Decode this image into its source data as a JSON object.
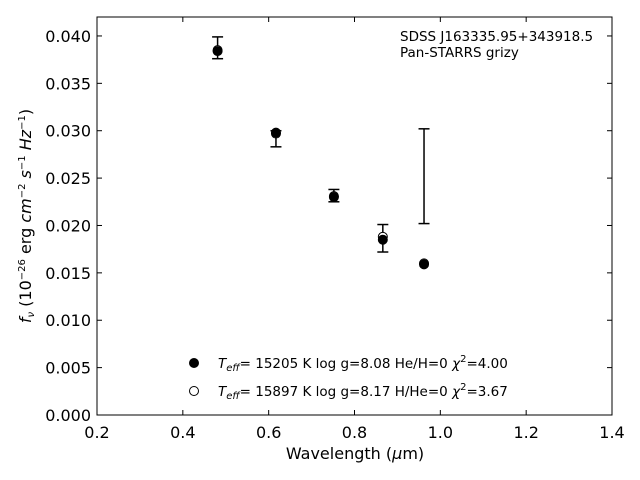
{
  "chart_data": {
    "type": "scatter",
    "xlabel": "Wavelength",
    "xlabel_unit_prefix": "(",
    "xlabel_unit_mu": "μ",
    "xlabel_unit_suffix": "m)",
    "ylabel_f": "f",
    "ylabel_nu": "ν",
    "ylabel_open": " (10",
    "ylabel_exp1": "−26",
    "ylabel_erg": " erg ",
    "ylabel_cm": "cm",
    "ylabel_exp2": "−2",
    "ylabel_s": " s",
    "ylabel_exp3": "−1",
    "ylabel_hz": " Hz",
    "ylabel_exp4": "−1",
    "ylabel_close": ")",
    "xlim": [
      0.2,
      1.4
    ],
    "ylim": [
      0.0,
      0.042
    ],
    "xticks": [
      0.2,
      0.4,
      0.6,
      0.8,
      1.0,
      1.2,
      1.4
    ],
    "xtick_labels": [
      "0.2",
      "0.4",
      "0.6",
      "0.8",
      "1.0",
      "1.2",
      "1.4"
    ],
    "yticks": [
      0.0,
      0.005,
      0.01,
      0.015,
      0.02,
      0.025,
      0.03,
      0.035,
      0.04
    ],
    "ytick_labels": [
      "0.000",
      "0.005",
      "0.010",
      "0.015",
      "0.020",
      "0.025",
      "0.030",
      "0.035",
      "0.040"
    ],
    "grid": false,
    "annotation_line1": "SDSS J163335.95+343918.5",
    "annotation_line2": "Pan-STARRS grizy",
    "observed": [
      {
        "x": 0.481,
        "y": 0.03875,
        "err_low": 0.0376,
        "err_high": 0.0399
      },
      {
        "x": 0.617,
        "y": 0.0296,
        "err_low": 0.0283,
        "err_high": 0.03
      },
      {
        "x": 0.752,
        "y": 0.0231,
        "err_low": 0.0225,
        "err_high": 0.0238
      },
      {
        "x": 0.866,
        "y": 0.0186,
        "err_low": 0.0172,
        "err_high": 0.0201
      },
      {
        "x": 0.962,
        "y": 0.0246,
        "err_low": 0.0202,
        "err_high": 0.0302
      }
    ],
    "series": [
      {
        "marker": "filled",
        "legend_T": "T",
        "legend_eff": "eff",
        "legend_rest": "= 15205 K  log g=8.08  He/H=0  ",
        "legend_chi": "χ",
        "legend_chi_exp": "2",
        "legend_chi_val": "=4.00",
        "x": [
          0.481,
          0.617,
          0.752,
          0.866,
          0.962
        ],
        "y": [
          0.0384,
          0.0298,
          0.023,
          0.0185,
          0.0159
        ]
      },
      {
        "marker": "open",
        "legend_T": "T",
        "legend_eff": "eff",
        "legend_rest": "= 15897 K  log g=8.17  H/He=0  ",
        "legend_chi": "χ",
        "legend_chi_exp": "2",
        "legend_chi_val": "=3.67",
        "x": [
          0.481,
          0.617,
          0.752,
          0.866,
          0.962
        ],
        "y": [
          0.0385,
          0.0297,
          0.0231,
          0.0188,
          0.016
        ]
      }
    ]
  }
}
